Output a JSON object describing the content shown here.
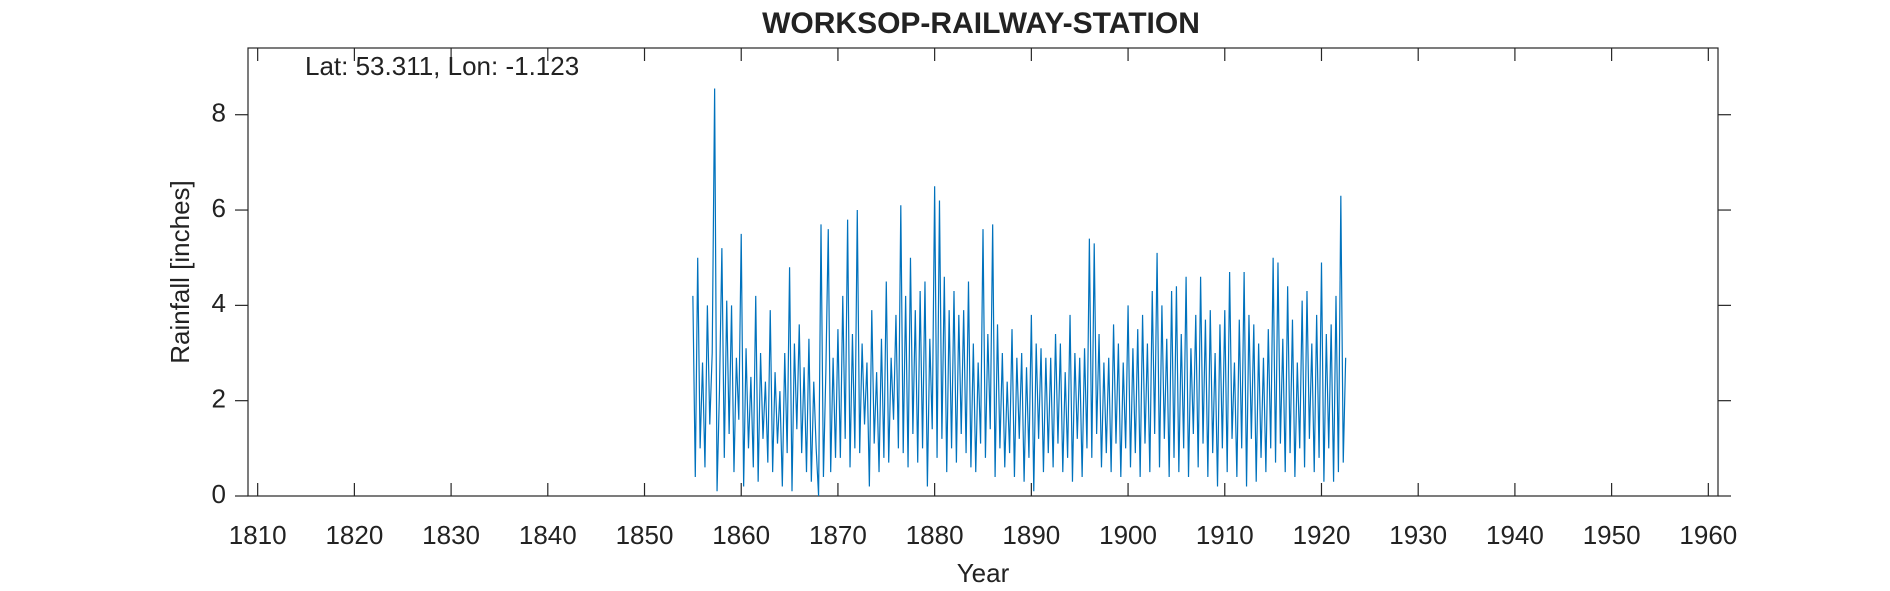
{
  "chart_data": {
    "type": "line",
    "title": "WORKSOP-RAILWAY-STATION",
    "annotation": "Lat: 53.311, Lon: -1.123",
    "x_label": "Year",
    "y_label": "Rainfall [inches]",
    "xlim": [
      1809,
      1961
    ],
    "ylim": [
      0,
      9.4
    ],
    "xticks": [
      1810,
      1820,
      1830,
      1840,
      1850,
      1860,
      1870,
      1880,
      1890,
      1900,
      1910,
      1920,
      1930,
      1940,
      1950,
      1960
    ],
    "yticks": [
      0,
      2,
      4,
      6,
      8
    ],
    "grid": false,
    "x": [
      1855,
      1855.25,
      1855.5,
      1855.75,
      1856,
      1856.25,
      1856.5,
      1856.75,
      1857,
      1857.25,
      1857.5,
      1857.75,
      1858,
      1858.25,
      1858.5,
      1858.75,
      1859,
      1859.25,
      1859.5,
      1859.75,
      1860,
      1860.25,
      1860.5,
      1860.75,
      1861,
      1861.25,
      1861.5,
      1861.75,
      1862,
      1862.25,
      1862.5,
      1862.75,
      1863,
      1863.25,
      1863.5,
      1863.75,
      1864,
      1864.25,
      1864.5,
      1864.75,
      1865,
      1865.25,
      1865.5,
      1865.75,
      1866,
      1866.25,
      1866.5,
      1866.75,
      1867,
      1867.25,
      1867.5,
      1867.75,
      1868,
      1868.25,
      1868.5,
      1868.75,
      1869,
      1869.25,
      1869.5,
      1869.75,
      1870,
      1870.25,
      1870.5,
      1870.75,
      1871,
      1871.25,
      1871.5,
      1871.75,
      1872,
      1872.25,
      1872.5,
      1872.75,
      1873,
      1873.25,
      1873.5,
      1873.75,
      1874,
      1874.25,
      1874.5,
      1874.75,
      1875,
      1875.25,
      1875.5,
      1875.75,
      1876,
      1876.25,
      1876.5,
      1876.75,
      1877,
      1877.25,
      1877.5,
      1877.75,
      1878,
      1878.25,
      1878.5,
      1878.75,
      1879,
      1879.25,
      1879.5,
      1879.75,
      1880,
      1880.25,
      1880.5,
      1880.75,
      1881,
      1881.25,
      1881.5,
      1881.75,
      1882,
      1882.25,
      1882.5,
      1882.75,
      1883,
      1883.25,
      1883.5,
      1883.75,
      1884,
      1884.25,
      1884.5,
      1884.75,
      1885,
      1885.25,
      1885.5,
      1885.75,
      1886,
      1886.25,
      1886.5,
      1886.75,
      1887,
      1887.25,
      1887.5,
      1887.75,
      1888,
      1888.25,
      1888.5,
      1888.75,
      1889,
      1889.25,
      1889.5,
      1889.75,
      1890,
      1890.25,
      1890.5,
      1890.75,
      1891,
      1891.25,
      1891.5,
      1891.75,
      1892,
      1892.25,
      1892.5,
      1892.75,
      1893,
      1893.25,
      1893.5,
      1893.75,
      1894,
      1894.25,
      1894.5,
      1894.75,
      1895,
      1895.25,
      1895.5,
      1895.75,
      1896,
      1896.25,
      1896.5,
      1896.75,
      1897,
      1897.25,
      1897.5,
      1897.75,
      1898,
      1898.25,
      1898.5,
      1898.75,
      1899,
      1899.25,
      1899.5,
      1899.75,
      1900,
      1900.25,
      1900.5,
      1900.75,
      1901,
      1901.25,
      1901.5,
      1901.75,
      1902,
      1902.25,
      1902.5,
      1902.75,
      1903,
      1903.25,
      1903.5,
      1903.75,
      1904,
      1904.25,
      1904.5,
      1904.75,
      1905,
      1905.25,
      1905.5,
      1905.75,
      1906,
      1906.25,
      1906.5,
      1906.75,
      1907,
      1907.25,
      1907.5,
      1907.75,
      1908,
      1908.25,
      1908.5,
      1908.75,
      1909,
      1909.25,
      1909.5,
      1909.75,
      1910,
      1910.25,
      1910.5,
      1910.75,
      1911,
      1911.25,
      1911.5,
      1911.75,
      1912,
      1912.25,
      1912.5,
      1912.75,
      1913,
      1913.25,
      1913.5,
      1913.75,
      1914,
      1914.25,
      1914.5,
      1914.75,
      1915,
      1915.25,
      1915.5,
      1915.75,
      1916,
      1916.25,
      1916.5,
      1916.75,
      1917,
      1917.25,
      1917.5,
      1917.75,
      1918,
      1918.25,
      1918.5,
      1918.75,
      1919,
      1919.25,
      1919.5,
      1919.75,
      1920,
      1920.25,
      1920.5,
      1920.75,
      1921,
      1921.25,
      1921.5,
      1921.75,
      1922,
      1922.25,
      1922.5
    ],
    "series": [
      {
        "color": "#0072bd",
        "values": [
          4.2,
          0.4,
          5.0,
          1.0,
          2.8,
          0.6,
          4.0,
          1.5,
          3.0,
          8.55,
          0.1,
          2.2,
          5.2,
          0.8,
          4.1,
          1.3,
          4.0,
          0.5,
          2.9,
          1.6,
          5.5,
          0.2,
          3.1,
          1.0,
          2.5,
          0.6,
          4.2,
          0.3,
          3.0,
          1.2,
          2.4,
          0.7,
          3.9,
          0.5,
          2.6,
          1.1,
          2.2,
          0.2,
          3.0,
          0.9,
          4.8,
          0.1,
          3.2,
          1.4,
          3.6,
          0.9,
          2.7,
          0.5,
          3.3,
          0.3,
          2.4,
          1.0,
          0.0,
          5.7,
          0.4,
          2.6,
          5.6,
          0.5,
          2.9,
          0.8,
          3.5,
          0.8,
          4.2,
          1.2,
          5.8,
          0.6,
          3.4,
          1.0,
          6.0,
          0.9,
          3.2,
          1.5,
          2.8,
          0.2,
          3.9,
          1.1,
          2.6,
          0.5,
          3.3,
          0.8,
          4.5,
          0.7,
          2.9,
          1.6,
          3.8,
          1.0,
          6.1,
          0.9,
          4.2,
          0.6,
          5.0,
          1.3,
          3.9,
          0.7,
          4.3,
          1.0,
          4.5,
          0.2,
          3.3,
          1.4,
          6.5,
          0.8,
          6.2,
          1.2,
          4.6,
          0.5,
          3.9,
          1.0,
          4.3,
          0.7,
          3.8,
          1.3,
          3.9,
          0.9,
          4.5,
          0.6,
          3.2,
          0.5,
          2.8,
          1.1,
          5.6,
          0.8,
          3.4,
          1.4,
          5.7,
          0.4,
          3.6,
          1.0,
          3.0,
          0.6,
          2.4,
          0.9,
          3.5,
          0.4,
          2.9,
          1.2,
          3.0,
          0.3,
          2.7,
          0.8,
          3.8,
          0.1,
          3.2,
          1.2,
          3.1,
          0.5,
          2.9,
          0.9,
          2.9,
          0.6,
          3.4,
          1.1,
          3.2,
          0.5,
          2.6,
          0.8,
          3.8,
          0.3,
          3.0,
          1.2,
          2.9,
          0.4,
          3.1,
          1.0,
          5.4,
          0.8,
          5.3,
          1.3,
          3.4,
          0.6,
          2.8,
          0.9,
          2.9,
          0.5,
          3.6,
          1.1,
          3.2,
          0.4,
          2.8,
          1.0,
          4.0,
          0.6,
          3.1,
          0.9,
          3.5,
          0.4,
          3.8,
          1.1,
          3.2,
          0.5,
          4.3,
          1.3,
          5.1,
          0.6,
          4.0,
          1.2,
          3.3,
          0.4,
          4.3,
          0.8,
          4.4,
          0.5,
          3.4,
          1.0,
          4.6,
          0.4,
          3.1,
          1.3,
          3.8,
          0.6,
          4.6,
          1.1,
          3.7,
          0.4,
          3.9,
          0.9,
          3.0,
          0.2,
          3.6,
          1.0,
          3.9,
          0.5,
          4.7,
          1.2,
          2.8,
          0.4,
          3.7,
          1.0,
          4.7,
          0.2,
          3.8,
          1.2,
          3.6,
          0.3,
          3.2,
          0.8,
          2.9,
          0.5,
          3.5,
          1.0,
          5.0,
          0.7,
          4.9,
          1.1,
          3.3,
          0.5,
          4.4,
          0.9,
          3.7,
          0.4,
          2.8,
          1.0,
          4.1,
          0.6,
          4.3,
          1.2,
          3.2,
          0.5,
          3.8,
          0.8,
          4.9,
          0.3,
          3.4,
          1.0,
          3.6,
          0.3,
          4.2,
          0.5,
          6.3,
          0.7,
          2.9
        ]
      }
    ]
  }
}
